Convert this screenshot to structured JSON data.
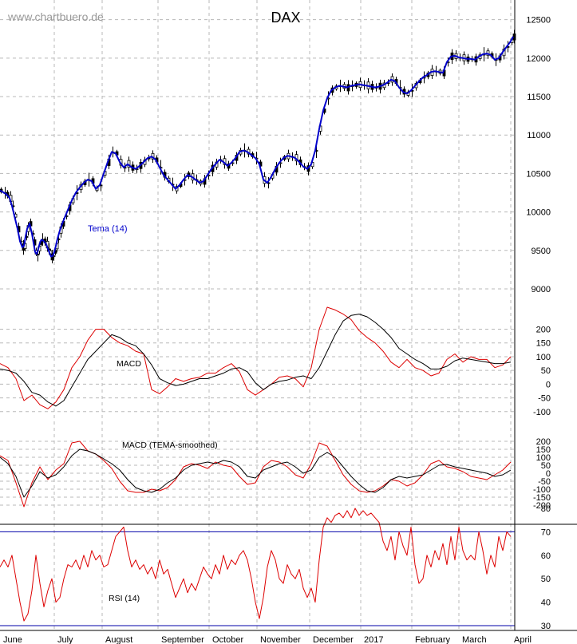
{
  "chart_data": {
    "type": "line",
    "watermark": "www.chartbuero.de",
    "title": "DAX",
    "months": [
      "June",
      "July",
      "August",
      "September",
      "October",
      "November",
      "December",
      "2017",
      "February",
      "March",
      "April"
    ],
    "colors": {
      "price": "#0000cc",
      "candle": "#000000",
      "macd": "#000000",
      "signal": "#dd0000",
      "rsi": "#dd0000",
      "rsi_lines": "#0000aa"
    },
    "price_panel": {
      "ylim": [
        9000,
        12600
      ],
      "yticks": [
        9000,
        9500,
        10000,
        10500,
        11000,
        11500,
        12000,
        12500
      ],
      "indicator_label": "Tema (14)",
      "x": [
        0,
        5,
        8,
        12,
        15,
        18,
        22,
        25,
        28,
        30,
        32,
        34,
        37,
        40,
        42,
        44,
        46,
        48,
        50,
        52,
        55,
        58,
        60,
        62,
        64,
        66,
        68,
        70,
        72,
        75,
        78,
        82,
        86,
        90,
        95,
        100,
        105,
        110,
        115,
        120,
        125,
        130,
        135,
        140,
        145,
        150,
        155,
        160,
        165,
        170,
        175,
        180,
        185,
        190,
        195,
        200,
        205,
        210,
        215,
        220,
        225,
        230,
        235,
        240,
        245,
        250,
        255,
        260,
        265,
        270,
        275,
        280,
        285,
        290,
        295,
        300,
        305,
        310,
        315,
        320,
        325,
        330,
        335,
        340,
        345,
        350,
        355,
        360,
        365,
        370,
        375,
        380,
        385,
        390,
        395,
        400,
        405,
        410,
        415,
        420,
        425,
        430,
        435,
        440,
        445,
        450,
        455,
        460,
        465,
        470,
        475,
        480,
        485,
        490,
        495,
        500,
        505,
        510,
        515,
        520,
        525,
        530,
        535,
        540,
        545,
        550,
        555,
        560,
        565,
        570,
        575,
        580,
        585,
        590,
        595,
        600,
        605,
        610,
        615,
        620,
        625,
        630,
        635,
        640,
        643
      ],
      "tema": [
        10280,
        10250,
        10230,
        10180,
        10080,
        9950,
        9780,
        9620,
        9540,
        9560,
        9680,
        9780,
        9850,
        9720,
        9600,
        9480,
        9450,
        9520,
        9600,
        9640,
        9620,
        9580,
        9520,
        9470,
        9420,
        9430,
        9480,
        9560,
        9650,
        9760,
        9850,
        9950,
        10050,
        10150,
        10250,
        10320,
        10380,
        10420,
        10400,
        10300,
        10350,
        10500,
        10650,
        10780,
        10760,
        10650,
        10580,
        10620,
        10580,
        10560,
        10600,
        10650,
        10700,
        10720,
        10680,
        10580,
        10480,
        10420,
        10360,
        10300,
        10350,
        10420,
        10480,
        10460,
        10420,
        10380,
        10400,
        10480,
        10560,
        10620,
        10680,
        10650,
        10600,
        10640,
        10700,
        10780,
        10800,
        10780,
        10740,
        10700,
        10620,
        10420,
        10380,
        10460,
        10560,
        10640,
        10700,
        10730,
        10720,
        10700,
        10650,
        10590,
        10560,
        10620,
        10800,
        11080,
        11320,
        11480,
        11580,
        11620,
        11640,
        11630,
        11620,
        11640,
        11650,
        11660,
        11650,
        11640,
        11630,
        11620,
        11630,
        11650,
        11680,
        11720,
        11700,
        11620,
        11560,
        11540,
        11580,
        11640,
        11700,
        11750,
        11780,
        11820,
        11830,
        11820,
        11810,
        11950,
        12020,
        12030,
        12010,
        12000,
        11990,
        11990,
        11980,
        12020,
        12050,
        12060,
        12040,
        11980,
        12000,
        12080,
        12150,
        12220,
        12280
      ]
    },
    "macd_panel": {
      "label": "MACD",
      "ylim": [
        -150,
        280
      ],
      "yticks": [
        -100,
        -50,
        0,
        50,
        100,
        150,
        200
      ],
      "x": [
        0,
        10,
        20,
        30,
        40,
        50,
        60,
        70,
        80,
        90,
        100,
        110,
        120,
        130,
        140,
        150,
        160,
        170,
        180,
        190,
        200,
        210,
        220,
        230,
        240,
        250,
        260,
        270,
        280,
        290,
        300,
        310,
        320,
        330,
        340,
        350,
        360,
        370,
        380,
        390,
        400,
        410,
        420,
        430,
        440,
        450,
        460,
        470,
        480,
        490,
        500,
        510,
        520,
        530,
        540,
        550,
        560,
        570,
        580,
        590,
        600,
        610,
        620,
        630,
        640
      ],
      "macd": [
        55,
        50,
        40,
        10,
        -30,
        -40,
        -65,
        -80,
        -60,
        -10,
        40,
        90,
        120,
        150,
        180,
        170,
        150,
        140,
        110,
        70,
        20,
        5,
        -5,
        0,
        10,
        20,
        20,
        30,
        40,
        55,
        60,
        45,
        5,
        -20,
        0,
        10,
        15,
        25,
        30,
        20,
        60,
        120,
        180,
        230,
        250,
        255,
        245,
        225,
        200,
        170,
        130,
        110,
        90,
        75,
        55,
        55,
        65,
        85,
        95,
        90,
        85,
        80,
        75,
        75,
        80
      ],
      "signal": [
        75,
        60,
        20,
        -60,
        -40,
        -75,
        -90,
        -65,
        -20,
        60,
        100,
        160,
        200,
        200,
        170,
        150,
        140,
        120,
        110,
        -20,
        -35,
        -10,
        20,
        10,
        20,
        25,
        40,
        40,
        60,
        75,
        45,
        -20,
        -40,
        -20,
        0,
        25,
        30,
        20,
        -10,
        60,
        200,
        280,
        270,
        255,
        235,
        195,
        170,
        150,
        120,
        80,
        60,
        90,
        60,
        50,
        30,
        40,
        90,
        110,
        80,
        100,
        90,
        90,
        60,
        70,
        100
      ]
    },
    "macd_tema_panel": {
      "label": "MACD (TEMA-smoothed)",
      "ylim": [
        -240,
        250
      ],
      "yticks": [
        -200,
        -150,
        -100,
        -50,
        0,
        50,
        100,
        150,
        200
      ],
      "x": [
        0,
        10,
        20,
        30,
        40,
        50,
        60,
        70,
        80,
        90,
        100,
        110,
        120,
        130,
        140,
        150,
        160,
        170,
        180,
        190,
        200,
        210,
        220,
        230,
        240,
        250,
        260,
        270,
        280,
        290,
        300,
        310,
        320,
        330,
        340,
        350,
        360,
        370,
        380,
        390,
        400,
        410,
        420,
        430,
        440,
        450,
        460,
        470,
        480,
        490,
        500,
        510,
        520,
        530,
        540,
        550,
        560,
        570,
        580,
        590,
        600,
        610,
        620,
        630,
        640
      ],
      "macd": [
        100,
        60,
        -20,
        -150,
        -80,
        10,
        -30,
        -10,
        40,
        110,
        150,
        140,
        120,
        90,
        60,
        20,
        -40,
        -90,
        -110,
        -120,
        -100,
        -60,
        -30,
        20,
        50,
        60,
        70,
        60,
        80,
        70,
        40,
        -20,
        -30,
        20,
        40,
        60,
        70,
        40,
        0,
        20,
        100,
        130,
        100,
        40,
        -20,
        -70,
        -110,
        -120,
        -90,
        -40,
        -20,
        -30,
        -20,
        -10,
        20,
        50,
        55,
        40,
        30,
        20,
        10,
        0,
        -20,
        -10,
        20
      ],
      "signal": [
        110,
        80,
        -60,
        -210,
        -60,
        40,
        -40,
        20,
        60,
        190,
        200,
        140,
        120,
        80,
        30,
        -50,
        -110,
        -120,
        -120,
        -100,
        -110,
        -90,
        -40,
        40,
        60,
        50,
        30,
        70,
        50,
        40,
        -20,
        -70,
        -60,
        40,
        80,
        70,
        40,
        -10,
        -30,
        60,
        190,
        170,
        80,
        -10,
        -70,
        -110,
        -120,
        -110,
        -80,
        -40,
        -50,
        -80,
        -60,
        -10,
        60,
        80,
        40,
        30,
        10,
        -20,
        -30,
        -40,
        -10,
        20,
        70
      ]
    },
    "rsi_panel": {
      "label": "RSI (14)",
      "ylim": [
        30,
        80
      ],
      "yticks": [
        30,
        40,
        50,
        60,
        70,
        80
      ],
      "reference_lines": [
        30,
        70
      ],
      "x": [
        0,
        5,
        10,
        15,
        20,
        25,
        30,
        35,
        40,
        45,
        50,
        55,
        60,
        65,
        70,
        75,
        80,
        85,
        90,
        95,
        100,
        105,
        110,
        115,
        120,
        125,
        130,
        135,
        140,
        145,
        150,
        155,
        160,
        165,
        170,
        175,
        180,
        185,
        190,
        195,
        200,
        205,
        210,
        215,
        220,
        225,
        230,
        235,
        240,
        245,
        250,
        255,
        260,
        265,
        270,
        275,
        280,
        285,
        290,
        295,
        300,
        305,
        310,
        315,
        320,
        325,
        330,
        335,
        340,
        345,
        350,
        355,
        360,
        365,
        370,
        375,
        380,
        385,
        390,
        395,
        400,
        405,
        410,
        415,
        420,
        425,
        430,
        435,
        440,
        445,
        450,
        455,
        460,
        465,
        470,
        475,
        480,
        485,
        490,
        495,
        500,
        505,
        510,
        515,
        520,
        525,
        530,
        535,
        540,
        545,
        550,
        555,
        560,
        565,
        570,
        575,
        580,
        585,
        590,
        595,
        600,
        605,
        610,
        615,
        620,
        625,
        630,
        635,
        640
      ],
      "values": [
        55,
        58,
        55,
        60,
        50,
        40,
        32,
        35,
        45,
        60,
        48,
        38,
        45,
        50,
        40,
        42,
        50,
        56,
        55,
        58,
        54,
        60,
        55,
        62,
        58,
        60,
        55,
        56,
        62,
        68,
        70,
        72,
        62,
        55,
        58,
        54,
        56,
        52,
        55,
        50,
        58,
        52,
        54,
        48,
        42,
        46,
        50,
        44,
        48,
        45,
        50,
        55,
        52,
        50,
        56,
        52,
        60,
        54,
        58,
        56,
        60,
        62,
        58,
        50,
        40,
        33,
        42,
        55,
        62,
        58,
        50,
        48,
        56,
        52,
        50,
        54,
        46,
        42,
        46,
        40,
        58,
        72,
        76,
        74,
        77,
        78,
        76,
        79,
        76,
        80,
        77,
        79,
        77,
        78,
        76,
        74,
        66,
        62,
        68,
        58,
        70,
        64,
        60,
        72,
        56,
        48,
        50,
        60,
        55,
        62,
        58,
        65,
        56,
        68,
        58,
        72,
        62,
        58,
        60,
        58,
        70,
        62,
        52,
        60,
        55,
        68,
        62,
        70,
        68
      ]
    }
  }
}
